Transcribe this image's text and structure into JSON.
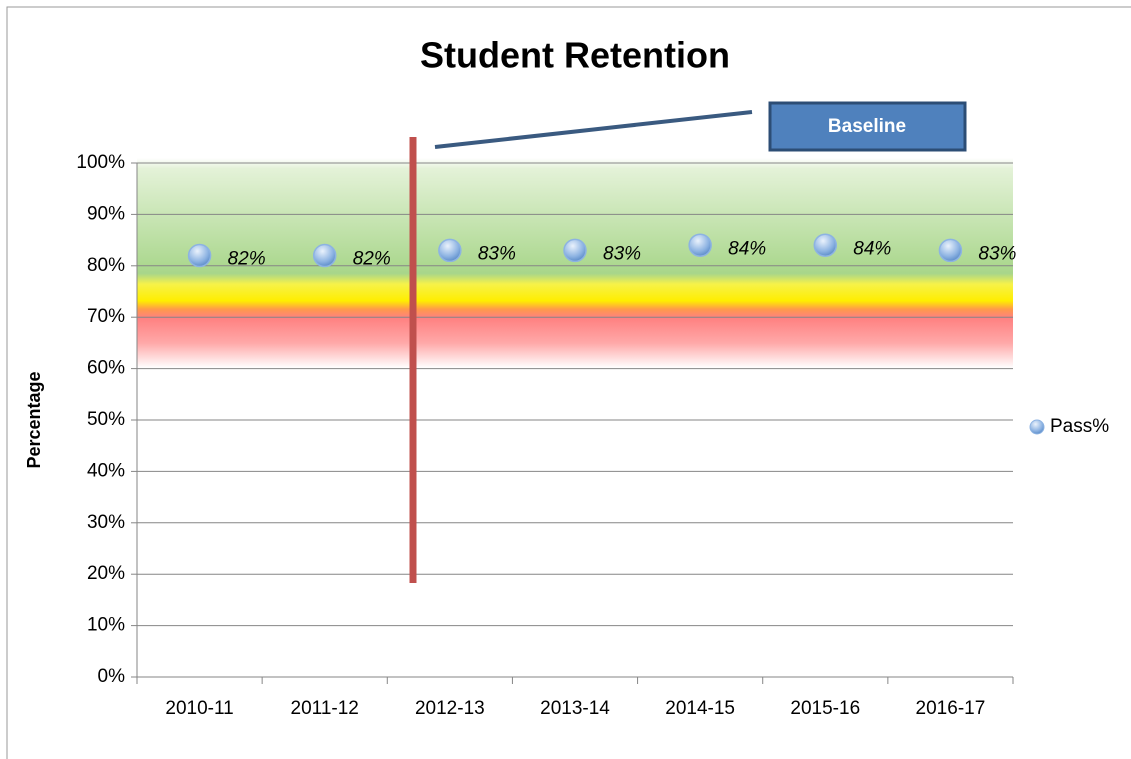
{
  "chart_data": {
    "type": "scatter",
    "title": "Student Retention",
    "y_label": "Percentage",
    "annotation": "Baseline",
    "categories": [
      "2010-11",
      "2011-12",
      "2012-13",
      "2013-14",
      "2014-15",
      "2015-16",
      "2016-17"
    ],
    "series": [
      {
        "name": "Pass%",
        "color": "#8db3e2",
        "values": [
          82,
          82,
          83,
          83,
          84,
          84,
          83
        ],
        "value_labels": [
          "82%",
          "82%",
          "83%",
          "83%",
          "84%",
          "84%",
          "83%"
        ]
      }
    ],
    "ylim": [
      0,
      100
    ],
    "yticks": [
      {
        "value": 0,
        "label": "0%"
      },
      {
        "value": 10,
        "label": "10%"
      },
      {
        "value": 20,
        "label": "20%"
      },
      {
        "value": 30,
        "label": "30%"
      },
      {
        "value": 40,
        "label": "40%"
      },
      {
        "value": 50,
        "label": "50%"
      },
      {
        "value": 60,
        "label": "60%"
      },
      {
        "value": 70,
        "label": "70%"
      },
      {
        "value": 80,
        "label": "80%"
      },
      {
        "value": 90,
        "label": "90%"
      },
      {
        "value": 100,
        "label": "100%"
      }
    ],
    "grid": true,
    "legend": "right"
  }
}
